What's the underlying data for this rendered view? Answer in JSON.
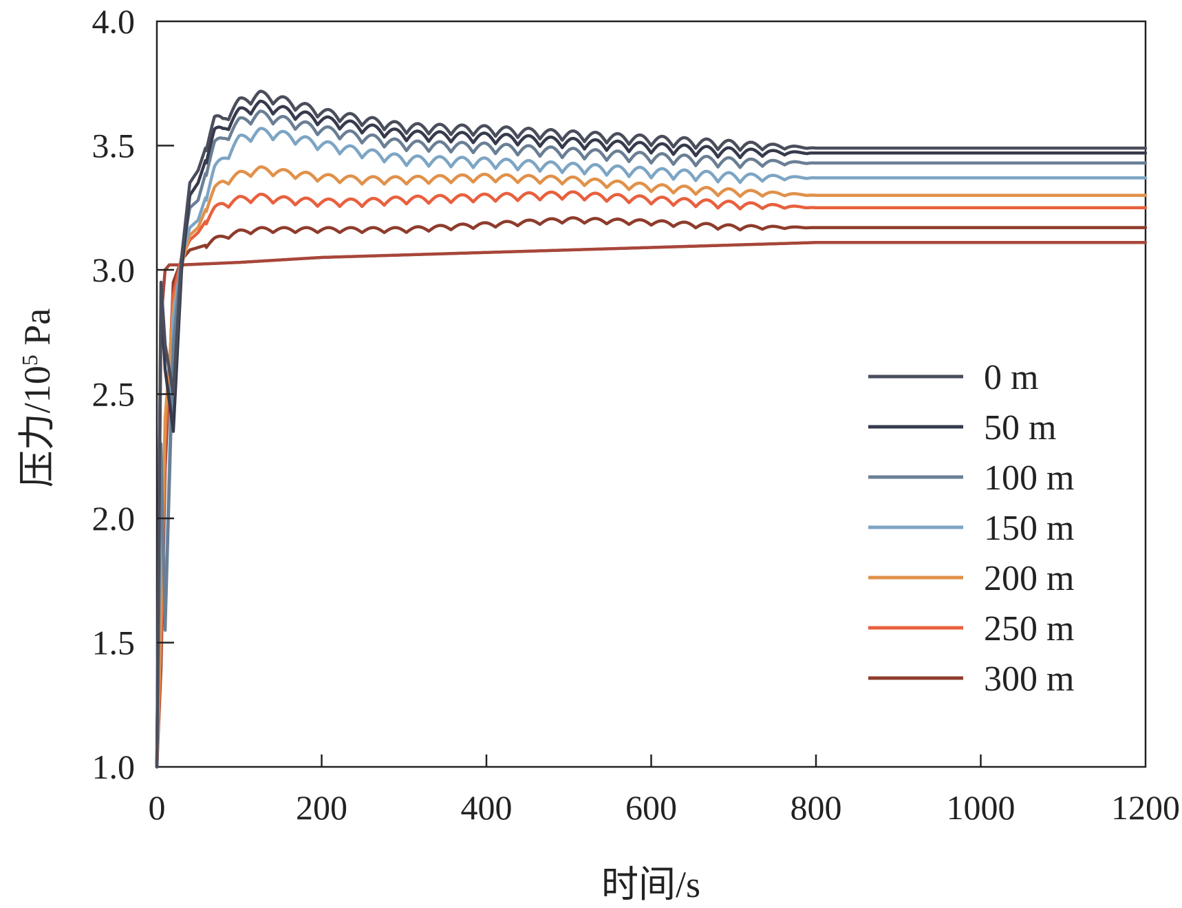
{
  "chart_data": {
    "type": "line",
    "xlabel": "时间/s",
    "ylabel": "压力/10⁵ Pa",
    "ylabel_base": "压力/10",
    "ylabel_exp": "5",
    "ylabel_unit": " Pa",
    "xlim": [
      0,
      1200
    ],
    "ylim": [
      1.0,
      4.0
    ],
    "x_ticks": [
      0,
      200,
      400,
      600,
      800,
      1000,
      1200
    ],
    "x_tick_labels": [
      "0",
      "200",
      "400",
      "600",
      "800",
      "1000",
      "1200"
    ],
    "y_ticks": [
      1.0,
      1.5,
      2.0,
      2.5,
      3.0,
      3.5,
      4.0
    ],
    "y_tick_labels": [
      "1.0",
      "1.5",
      "2.0",
      "2.5",
      "3.0",
      "3.5",
      "4.0"
    ],
    "grid": false,
    "legend_position": "right-middle",
    "series": [
      {
        "name": "0 m",
        "color": "#4a4e5c",
        "x": [
          0,
          5,
          10,
          20,
          30,
          40,
          50,
          60,
          70,
          80,
          100,
          125,
          150,
          200,
          250,
          300,
          400,
          500,
          600,
          700,
          800,
          1200
        ],
        "y": [
          1.0,
          2.95,
          2.7,
          2.5,
          3.05,
          3.35,
          3.4,
          3.5,
          3.6,
          3.6,
          3.67,
          3.7,
          3.68,
          3.63,
          3.6,
          3.57,
          3.56,
          3.54,
          3.52,
          3.5,
          3.49,
          3.49
        ],
        "oscillation": 0.04
      },
      {
        "name": "50 m",
        "color": "#363a4c",
        "x": [
          0,
          5,
          10,
          20,
          30,
          40,
          50,
          60,
          70,
          80,
          100,
          125,
          150,
          200,
          250,
          300,
          400,
          500,
          600,
          700,
          800,
          1200
        ],
        "y": [
          1.0,
          2.9,
          2.6,
          2.35,
          3.0,
          3.3,
          3.35,
          3.45,
          3.55,
          3.56,
          3.63,
          3.66,
          3.64,
          3.6,
          3.57,
          3.54,
          3.53,
          3.51,
          3.49,
          3.47,
          3.47,
          3.47
        ],
        "oscillation": 0.04
      },
      {
        "name": "100 m",
        "color": "#6a7f95",
        "x": [
          0,
          5,
          10,
          20,
          30,
          40,
          50,
          60,
          70,
          80,
          100,
          125,
          150,
          200,
          250,
          300,
          400,
          500,
          600,
          700,
          800,
          1200
        ],
        "y": [
          1.0,
          2.3,
          1.55,
          2.7,
          3.05,
          3.25,
          3.28,
          3.4,
          3.5,
          3.52,
          3.59,
          3.62,
          3.6,
          3.56,
          3.53,
          3.5,
          3.49,
          3.47,
          3.45,
          3.43,
          3.43,
          3.43
        ],
        "oscillation": 0.04
      },
      {
        "name": "150 m",
        "color": "#7da5c4",
        "x": [
          0,
          5,
          10,
          20,
          30,
          40,
          50,
          60,
          70,
          80,
          100,
          125,
          150,
          200,
          250,
          300,
          400,
          500,
          600,
          700,
          800,
          1200
        ],
        "y": [
          1.0,
          2.2,
          1.6,
          2.8,
          3.05,
          3.17,
          3.2,
          3.3,
          3.4,
          3.44,
          3.52,
          3.55,
          3.54,
          3.5,
          3.47,
          3.44,
          3.43,
          3.41,
          3.39,
          3.37,
          3.37,
          3.37
        ],
        "oscillation": 0.04
      },
      {
        "name": "200 m",
        "color": "#e0914a",
        "x": [
          0,
          5,
          10,
          20,
          30,
          40,
          50,
          60,
          70,
          80,
          100,
          125,
          150,
          200,
          250,
          300,
          400,
          500,
          600,
          700,
          800,
          1200
        ],
        "y": [
          1.0,
          1.6,
          2.4,
          2.85,
          3.02,
          3.14,
          3.17,
          3.25,
          3.32,
          3.35,
          3.38,
          3.4,
          3.39,
          3.37,
          3.36,
          3.36,
          3.37,
          3.36,
          3.33,
          3.31,
          3.3,
          3.3
        ],
        "oscillation": 0.03
      },
      {
        "name": "250 m",
        "color": "#e8603e",
        "x": [
          0,
          5,
          10,
          20,
          30,
          40,
          50,
          60,
          70,
          80,
          100,
          125,
          150,
          200,
          250,
          300,
          400,
          500,
          600,
          700,
          800,
          1200
        ],
        "y": [
          1.0,
          1.5,
          2.3,
          2.9,
          3.05,
          3.12,
          3.15,
          3.2,
          3.24,
          3.26,
          3.28,
          3.29,
          3.28,
          3.27,
          3.27,
          3.28,
          3.29,
          3.3,
          3.28,
          3.26,
          3.25,
          3.25
        ],
        "oscillation": 0.03
      },
      {
        "name": "300 m",
        "color": "#8e3c2c",
        "x": [
          0,
          5,
          10,
          20,
          30,
          40,
          50,
          60,
          70,
          80,
          100,
          125,
          150,
          200,
          250,
          300,
          400,
          500,
          600,
          700,
          800,
          1200
        ],
        "y": [
          1.0,
          1.4,
          2.2,
          2.95,
          3.04,
          3.08,
          3.09,
          3.1,
          3.12,
          3.13,
          3.15,
          3.16,
          3.16,
          3.16,
          3.16,
          3.16,
          3.18,
          3.2,
          3.19,
          3.17,
          3.17,
          3.17
        ],
        "oscillation": 0.02
      },
      {
        "name": "",
        "color": "#a8463a",
        "x": [
          0,
          5,
          10,
          15,
          20,
          30,
          100,
          200,
          300,
          400,
          500,
          600,
          700,
          800,
          1200
        ],
        "y": [
          1.0,
          2.8,
          3.0,
          3.02,
          3.02,
          3.02,
          3.03,
          3.05,
          3.06,
          3.07,
          3.08,
          3.09,
          3.1,
          3.11,
          3.11
        ],
        "oscillation": 0
      }
    ]
  }
}
